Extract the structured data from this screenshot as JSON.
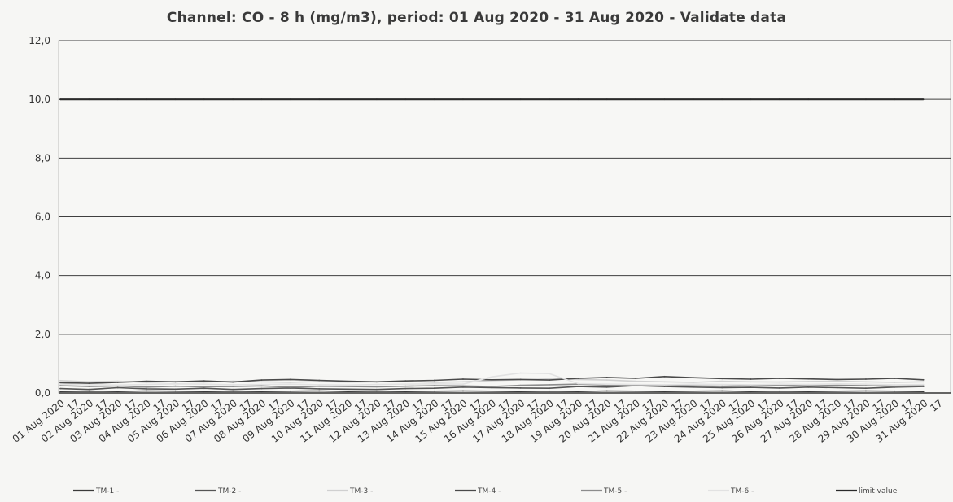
{
  "chart_data": {
    "type": "line",
    "title": "Channel: CO - 8 h (mg/m3), period: 01 Aug 2020 - 31 Aug 2020 - Validate data",
    "xlabel": "",
    "ylabel": "",
    "ylim": [
      0,
      12
    ],
    "yticks": [
      "0,0",
      "2,0",
      "4,0",
      "6,0",
      "8,0",
      "10,0",
      "12,0"
    ],
    "categories": [
      "01 Aug 2020",
      "02 Aug 2020",
      "03 Aug 2020",
      "04 Aug 2020",
      "05 Aug 2020",
      "06 Aug 2020",
      "07 Aug 2020",
      "08 Aug 2020",
      "09 Aug 2020",
      "10 Aug 2020",
      "11 Aug 2020",
      "12 Aug 2020",
      "13 Aug 2020",
      "14 Aug 2020",
      "15 Aug 2020",
      "16 Aug 2020",
      "17 Aug 2020",
      "18 Aug 2020",
      "19 Aug 2020",
      "20 Aug 2020",
      "21 Aug 2020",
      "22 Aug 2020",
      "23 Aug 2020",
      "24 Aug 2020",
      "25 Aug 2020",
      "26 Aug 2020",
      "27 Aug 2020",
      "28 Aug 2020",
      "29 Aug 2020",
      "30 Aug 2020",
      "31 Aug 2020"
    ],
    "sub_tick_label": "17",
    "grid": true,
    "legend_position": "bottom",
    "series": [
      {
        "name": "TM-1 -",
        "color": "#3a3a3a",
        "values": [
          0.05,
          0.06,
          0.05,
          0.07,
          0.06,
          0.05,
          0.06,
          0.05,
          0.06,
          0.07,
          0.05,
          0.06,
          0.05,
          0.06,
          0.07,
          0.06,
          0.05,
          0.06,
          0.05,
          0.07,
          0.06,
          0.05,
          0.06,
          0.07,
          0.05,
          0.06,
          0.05,
          0.06,
          0.07,
          0.06,
          0.05
        ]
      },
      {
        "name": "TM-2 -",
        "color": "#555555",
        "values": [
          0.15,
          0.12,
          0.18,
          0.14,
          0.13,
          0.16,
          0.12,
          0.15,
          0.17,
          0.14,
          0.13,
          0.12,
          0.15,
          0.16,
          0.2,
          0.18,
          0.17,
          0.16,
          0.22,
          0.2,
          0.25,
          0.22,
          0.2,
          0.18,
          0.19,
          0.17,
          0.2,
          0.18,
          0.16,
          0.2,
          0.22
        ]
      },
      {
        "name": "TM-3 -",
        "color": "#d0d0d0",
        "values": [
          0.42,
          0.38,
          0.4,
          0.36,
          0.39,
          0.37,
          0.4,
          0.38,
          0.36,
          0.39,
          0.37,
          0.38,
          0.4,
          0.36,
          0.38,
          0.42,
          0.45,
          0.48,
          0.46,
          0.44,
          0.4,
          0.38,
          0.36,
          0.4,
          0.38,
          0.37,
          0.39,
          0.4,
          0.38,
          0.36,
          0.38
        ]
      },
      {
        "name": "TM-4 -",
        "color": "#4a4a4a",
        "values": [
          0.35,
          0.33,
          0.36,
          0.4,
          0.38,
          0.41,
          0.37,
          0.44,
          0.46,
          0.43,
          0.4,
          0.38,
          0.41,
          0.43,
          0.47,
          0.45,
          0.46,
          0.44,
          0.5,
          0.53,
          0.5,
          0.56,
          0.52,
          0.49,
          0.47,
          0.5,
          0.48,
          0.46,
          0.47,
          0.5,
          0.45
        ]
      },
      {
        "name": "TM-5 -",
        "color": "#8c8c8c",
        "values": [
          0.25,
          0.22,
          0.24,
          0.2,
          0.23,
          0.21,
          0.22,
          0.24,
          0.2,
          0.23,
          0.22,
          0.21,
          0.23,
          0.25,
          0.24,
          0.22,
          0.26,
          0.28,
          0.3,
          0.27,
          0.25,
          0.26,
          0.24,
          0.23,
          0.25,
          0.27,
          0.24,
          0.26,
          0.25,
          0.23,
          0.24
        ]
      },
      {
        "name": "TM-6 -",
        "color": "#e2e2e2",
        "values": [
          0.3,
          0.28,
          0.27,
          0.29,
          0.31,
          0.3,
          0.28,
          0.29,
          0.3,
          0.28,
          0.27,
          0.29,
          0.3,
          0.31,
          0.3,
          0.55,
          0.68,
          0.66,
          0.32,
          0.3,
          0.29,
          0.28,
          0.3,
          0.29,
          0.28,
          0.3,
          0.29,
          0.31,
          0.3,
          0.28,
          0.29
        ]
      },
      {
        "name": "limit value",
        "color": "#2a2a2a",
        "values": [
          10,
          10,
          10,
          10,
          10,
          10,
          10,
          10,
          10,
          10,
          10,
          10,
          10,
          10,
          10,
          10,
          10,
          10,
          10,
          10,
          10,
          10,
          10,
          10,
          10,
          10,
          10,
          10,
          10,
          10,
          10
        ]
      }
    ]
  }
}
